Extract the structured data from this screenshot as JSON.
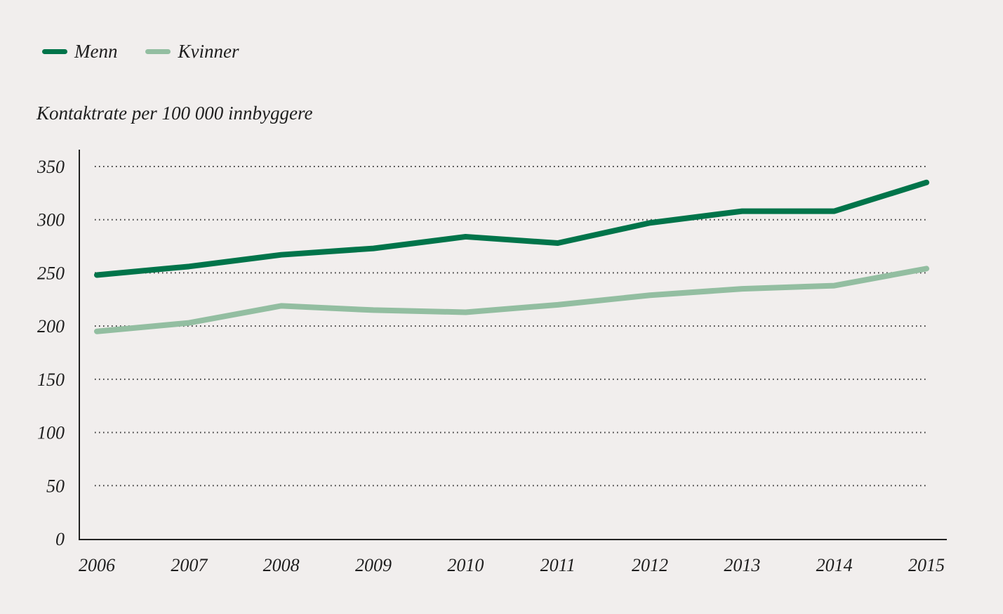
{
  "chart_data": {
    "type": "line",
    "title": "",
    "xlabel": "",
    "ylabel": "Kontaktrate per 100 000 innbyggere",
    "x": [
      2006,
      2007,
      2008,
      2009,
      2010,
      2011,
      2012,
      2013,
      2014,
      2015
    ],
    "ylim": [
      0,
      350
    ],
    "yticks": [
      0,
      50,
      100,
      150,
      200,
      250,
      300,
      350
    ],
    "grid": true,
    "legend": "top-left",
    "series": [
      {
        "name": "Menn",
        "color": "#00744a",
        "values": [
          248,
          256,
          267,
          273,
          284,
          278,
          297,
          308,
          308,
          335
        ]
      },
      {
        "name": "Kvinner",
        "color": "#93bea1",
        "values": [
          195,
          203,
          219,
          215,
          213,
          220,
          229,
          235,
          238,
          254
        ]
      }
    ]
  }
}
